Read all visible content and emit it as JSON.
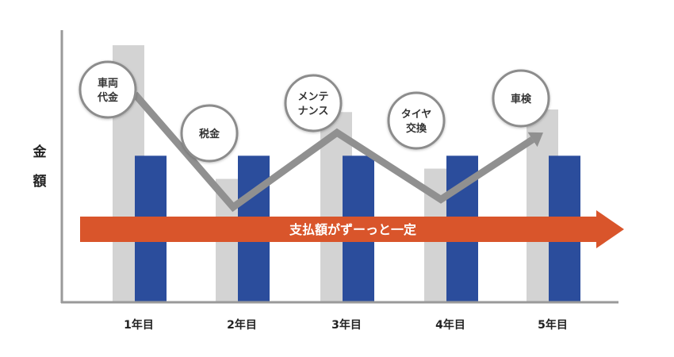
{
  "chart_data": {
    "type": "bar",
    "ylabel": "金額",
    "categories": [
      "1年目",
      "2年目",
      "3年目",
      "4年目",
      "5年目"
    ],
    "ylim": [
      0,
      100
    ],
    "series": [
      {
        "color": "#d3d3d3",
        "values": [
          100,
          48,
          74,
          52,
          75
        ]
      },
      {
        "color": "#2b4d9c",
        "values": [
          57,
          57,
          57,
          57,
          57
        ]
      }
    ],
    "trend_line": {
      "color": "#909090",
      "values": [
        81,
        37,
        66,
        40,
        66
      ]
    },
    "annotations": [
      {
        "category": "1年目",
        "lines": [
          "車両",
          "代金"
        ]
      },
      {
        "category": "2年目",
        "lines": [
          "税金"
        ]
      },
      {
        "category": "3年目",
        "lines": [
          "メンテ",
          "ナンス"
        ]
      },
      {
        "category": "4年目",
        "lines": [
          "タイヤ",
          "交換"
        ]
      },
      {
        "category": "5年目",
        "lines": [
          "車検"
        ]
      }
    ],
    "banner_arrow": {
      "text": "支払額がずーっと一定",
      "color": "#d9552b"
    },
    "grid": false
  }
}
